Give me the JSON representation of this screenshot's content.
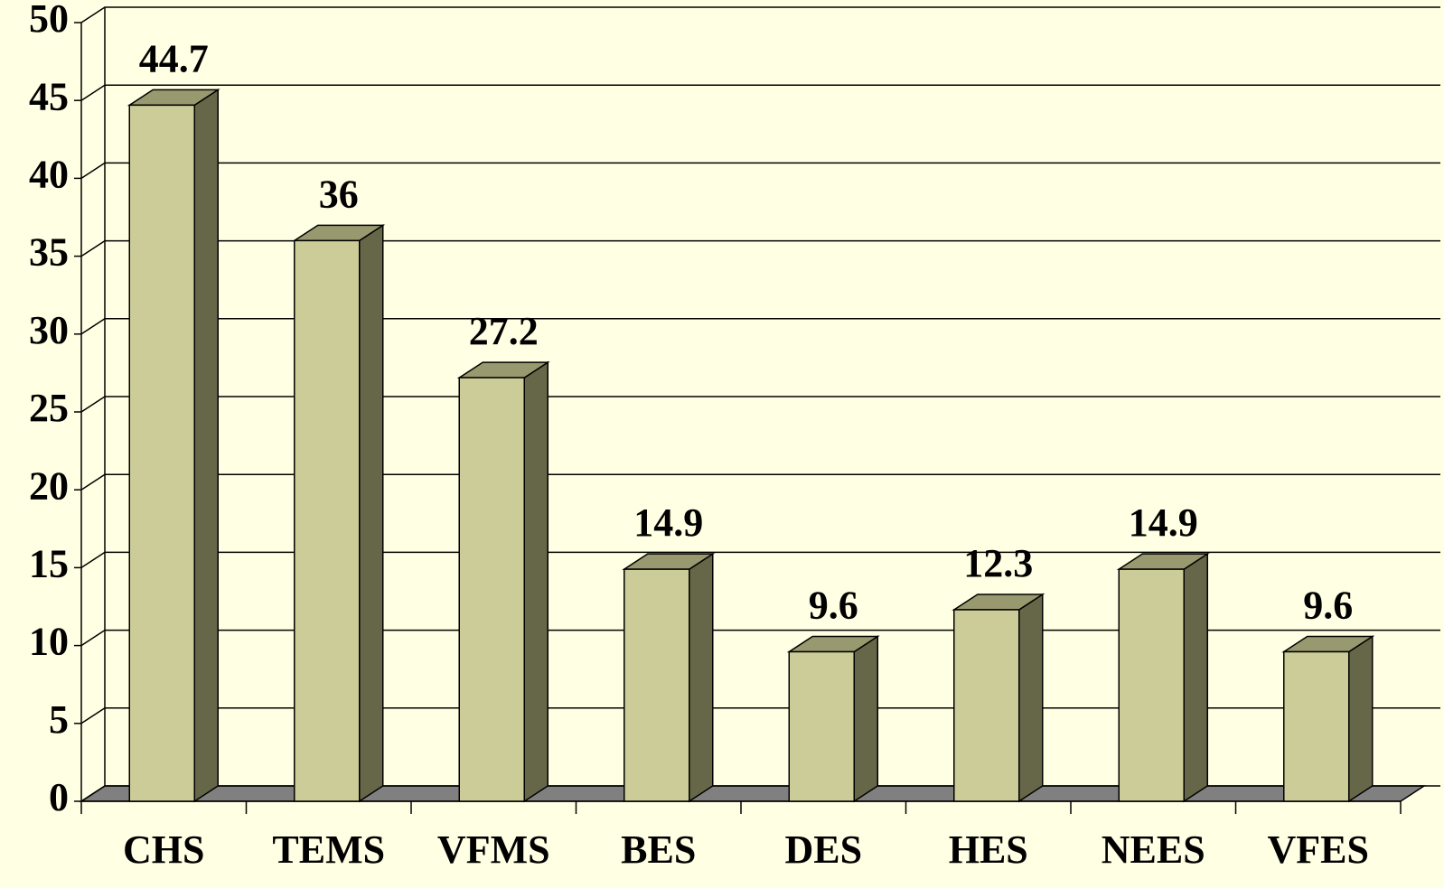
{
  "chart_data": {
    "type": "bar",
    "categories": [
      "CHS",
      "TEMS",
      "VFMS",
      "BES",
      "DES",
      "HES",
      "NEES",
      "VFES"
    ],
    "values": [
      44.7,
      36,
      27.2,
      14.9,
      9.6,
      12.3,
      14.9,
      9.6
    ],
    "color": "#cccc99",
    "ylim": [
      0,
      50
    ],
    "yticks": [
      0,
      5,
      10,
      15,
      20,
      25,
      30,
      35,
      40,
      45,
      50
    ],
    "grid": true
  }
}
